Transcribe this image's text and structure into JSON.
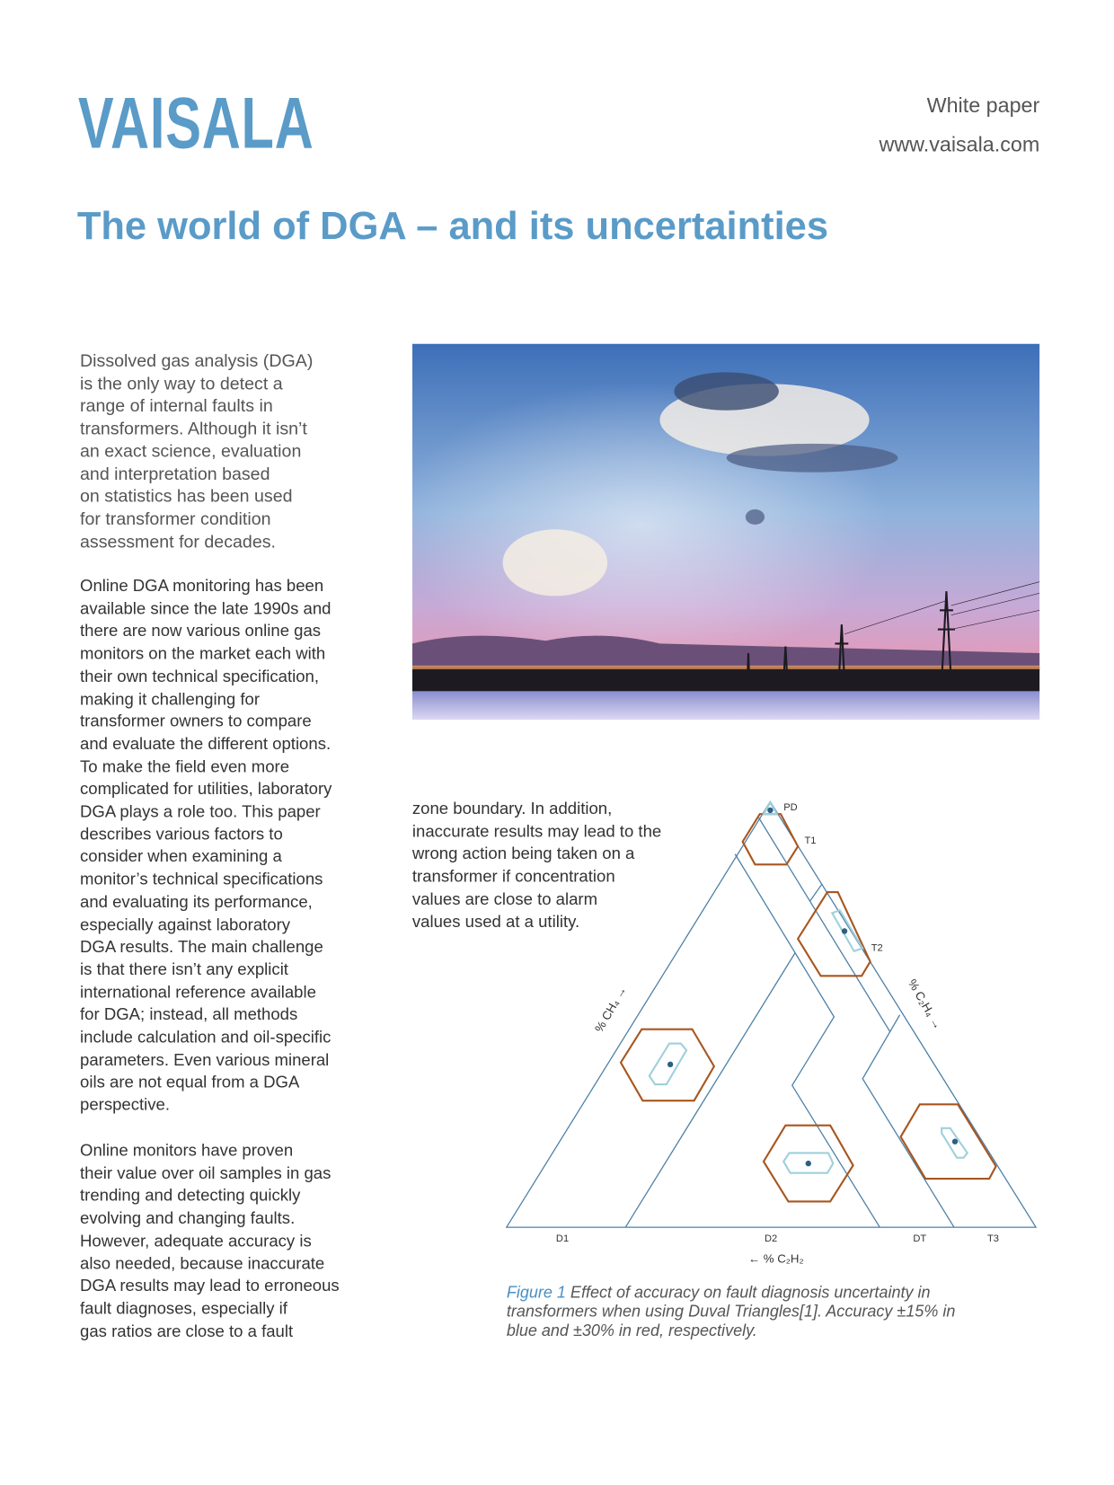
{
  "header": {
    "logo_text": "VAISALA",
    "doc_type": "White paper",
    "website": "www.vaisala.com",
    "title": "The world of DGA – and its uncertainties"
  },
  "intro_lines": [
    "Dissolved gas analysis (DGA)",
    "is the only way to detect a",
    "range of internal faults in",
    "transformers. Although it isn’t",
    "an exact science, evaluation",
    "and interpretation based",
    "on statistics has been used",
    "for transformer condition",
    "assessment for decades."
  ],
  "para2_lines": [
    "Online DGA monitoring has been",
    "available since the late 1990s and",
    "there are now various online gas",
    "monitors on the market each with",
    "their own technical specification,",
    "making it challenging for",
    "transformer owners to compare",
    "and evaluate the different options.",
    "To make the field even more",
    "complicated for utilities, laboratory",
    "DGA plays a role too. This paper",
    "describes various factors to",
    "consider when examining a",
    "monitor’s technical specifications",
    "and evaluating its performance,",
    "especially against laboratory",
    "DGA results. The main challenge",
    "is that there isn’t any explicit",
    "international reference available",
    "for DGA; instead, all methods",
    "include calculation and oil-specific",
    "parameters. Even various mineral",
    "oils are not equal from a DGA",
    "perspective."
  ],
  "para3_lines": [
    "Online monitors have proven",
    "their value over oil samples in gas",
    "trending and detecting quickly",
    "evolving and changing faults.",
    "However, adequate accuracy is",
    "also needed, because inaccurate",
    "DGA results may lead to erroneous",
    "fault diagnoses, especially if",
    "gas ratios are close to a fault"
  ],
  "para4_lines": [
    "zone boundary. In addition,",
    "inaccurate results may lead to the",
    "wrong action being taken on a",
    "transformer if concentration",
    "values are close to alarm",
    "values used at a utility."
  ],
  "figure": {
    "zone_labels": {
      "PD": "PD",
      "T1": "T1",
      "T2": "T2",
      "D1": "D1",
      "D2": "D2",
      "DT": "DT",
      "T3": "T3"
    },
    "axis_bottom": "← % C₂H₂",
    "axis_left": "% CH₄ →",
    "axis_right": "% C₂H₄ →",
    "colors": {
      "boundary": "#4a7fa6",
      "accuracy_15": "#9fd0dc",
      "accuracy_30": "#a8561f",
      "point": "#2f5f82"
    },
    "caption_label": "Figure 1",
    "caption_lines": [
      " Effect of accuracy on fault diagnosis uncertainty in",
      "transformers when using Duval Triangles[1]. Accuracy ±15% in",
      "blue and ±30% in red, respectively."
    ]
  }
}
